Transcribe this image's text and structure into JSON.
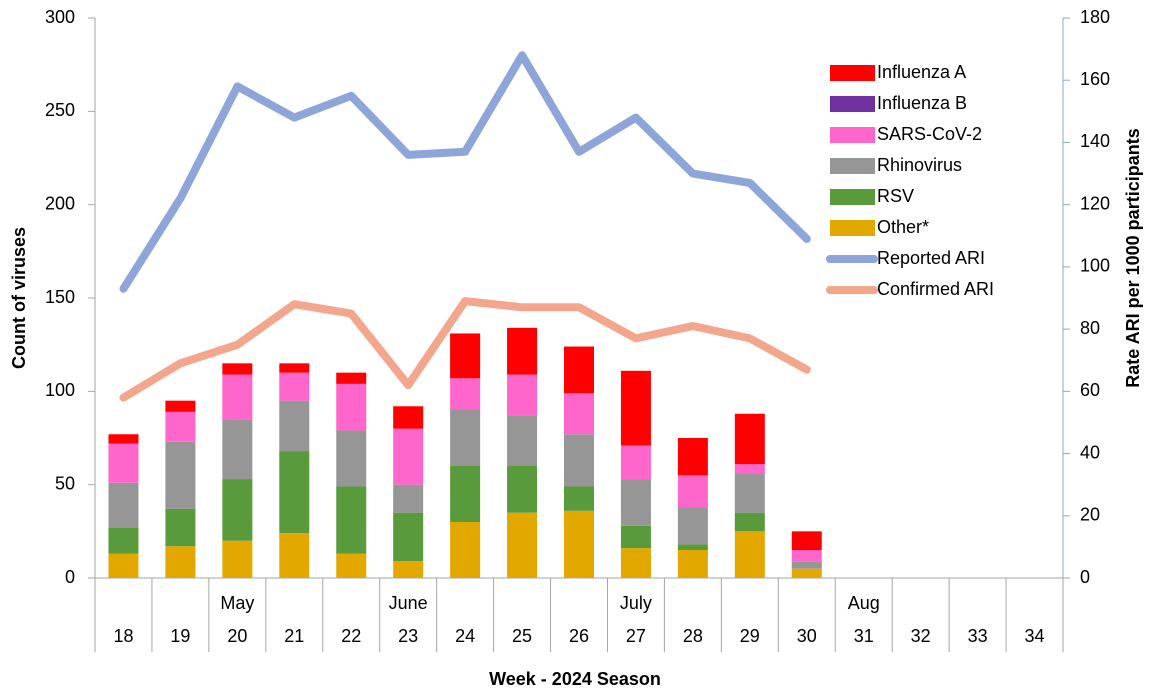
{
  "chart_data": {
    "type": "bar",
    "stacked": true,
    "x_label": "Week - 2024 Season",
    "y_label": "Count of viruses",
    "y2_label": "Rate ARI  per 1000 participants",
    "categories": [
      "18",
      "19",
      "20",
      "21",
      "22",
      "23",
      "24",
      "25",
      "26",
      "27",
      "28",
      "29",
      "30",
      "31",
      "32",
      "33",
      "34"
    ],
    "months": [
      null,
      null,
      "May",
      null,
      null,
      "June",
      null,
      null,
      null,
      "July",
      null,
      null,
      null,
      "Aug",
      null,
      null,
      null
    ],
    "ylim": [
      0,
      300
    ],
    "yticks": [
      0,
      50,
      100,
      150,
      200,
      250,
      300
    ],
    "y2lim": [
      0,
      180
    ],
    "y2ticks": [
      0,
      20,
      40,
      60,
      80,
      100,
      120,
      140,
      160,
      180
    ],
    "legend": "top-right",
    "series": [
      {
        "name": "Influenza A",
        "type": "bar",
        "color": "#ff0000",
        "values": [
          5,
          6,
          6,
          5,
          6,
          12,
          24,
          25,
          25,
          40,
          20,
          27,
          10,
          null,
          null,
          null,
          null
        ]
      },
      {
        "name": "Influenza B",
        "type": "bar",
        "color": "#7030a0",
        "values": [
          0,
          0,
          0,
          0,
          0,
          0,
          0,
          0,
          0,
          0,
          0,
          0,
          0,
          null,
          null,
          null,
          null
        ]
      },
      {
        "name": "SARS-CoV-2",
        "type": "bar",
        "color": "#ff66cc",
        "values": [
          21,
          16,
          24,
          15,
          25,
          30,
          17,
          22,
          22,
          18,
          17,
          5,
          6,
          null,
          null,
          null,
          null
        ]
      },
      {
        "name": "Rhinovirus",
        "type": "bar",
        "color": "#969696",
        "values": [
          24,
          36,
          32,
          27,
          30,
          15,
          30,
          27,
          28,
          25,
          20,
          21,
          4,
          null,
          null,
          null,
          null
        ]
      },
      {
        "name": "RSV",
        "type": "bar",
        "color": "#589a3c",
        "values": [
          14,
          20,
          33,
          44,
          36,
          26,
          30,
          25,
          13,
          12,
          3,
          10,
          0,
          null,
          null,
          null,
          null
        ]
      },
      {
        "name": "Other*",
        "type": "bar",
        "color": "#e3a800",
        "values": [
          13,
          17,
          20,
          24,
          13,
          9,
          30,
          35,
          36,
          16,
          15,
          25,
          5,
          null,
          null,
          null,
          null
        ]
      },
      {
        "name": "Reported ARI",
        "type": "line",
        "axis": "y2",
        "color": "#8ea5da",
        "values": [
          93,
          122,
          158,
          148,
          155,
          136,
          137,
          168,
          137,
          148,
          130,
          127,
          109,
          null,
          null,
          null,
          null
        ]
      },
      {
        "name": "Confirmed ARI",
        "type": "line",
        "axis": "y2",
        "color": "#f3a68c",
        "values": [
          58,
          69,
          75,
          88,
          85,
          62,
          89,
          87,
          87,
          77,
          81,
          77,
          67,
          null,
          null,
          null,
          null
        ]
      }
    ]
  }
}
